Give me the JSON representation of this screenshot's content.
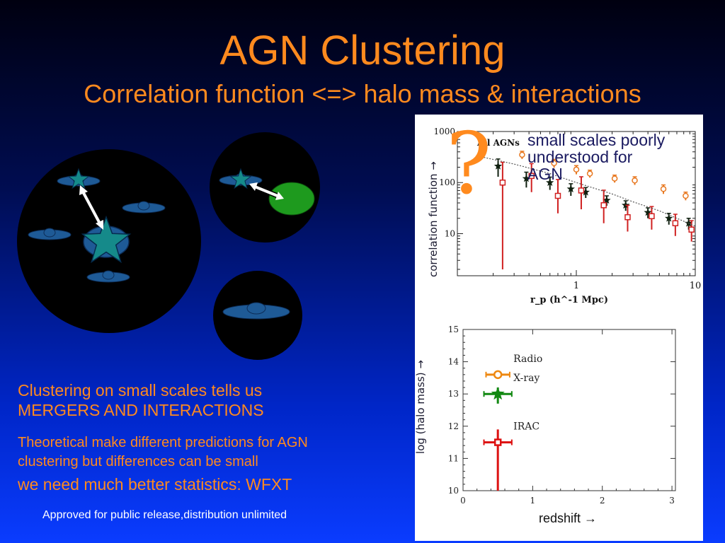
{
  "slide": {
    "title": "AGN Clustering",
    "subtitle": "Correlation function <=> halo mass & interactions",
    "text1_line1": "Clustering on small scales tells us",
    "text1_line2": "MERGERS AND INTERACTIONS",
    "text2_line1": "Theoretical make different predictions for AGN",
    "text2_line2": "clustering but differences can be small",
    "text3": "we need much better statistics: WFXT",
    "footer": "Approved for public release,distribution unlimited"
  },
  "colors": {
    "accent": "#ff8a1e",
    "background_top": "#000010",
    "background_bottom": "#0a3cff"
  },
  "chart_data": [
    {
      "type": "scatter",
      "title": "All AGNs",
      "xlabel": "r_p (h^-1 Mpc)",
      "ylabel": "correlation function →",
      "x_scale": "log",
      "y_scale": "log",
      "xlim": [
        0.1,
        10
      ],
      "ylim": [
        1.5,
        1000
      ],
      "x_tick_labels": [
        "1",
        "10"
      ],
      "y_tick_labels": [
        "10",
        "100",
        "1000"
      ],
      "annotation": "?",
      "note": [
        "small scales poorly",
        "understood for",
        "AGN"
      ],
      "series": [
        {
          "name": "orange circles",
          "color": "#e87820",
          "marker": "circle",
          "x": [
            0.16,
            0.35,
            0.65,
            1.0,
            1.3,
            2.1,
            3.1,
            5.4,
            8.3
          ],
          "y": [
            400,
            350,
            240,
            180,
            150,
            120,
            110,
            75,
            55
          ],
          "err_low": [
            80,
            60,
            45,
            35,
            25,
            20,
            20,
            15,
            10
          ],
          "err_high": [
            80,
            60,
            45,
            35,
            25,
            20,
            20,
            15,
            10
          ]
        },
        {
          "name": "black stars",
          "color": "#102010",
          "marker": "star",
          "x": [
            0.22,
            0.38,
            0.6,
            0.9,
            1.2,
            1.8,
            2.6,
            4.0,
            6.0,
            8.8
          ],
          "y": [
            210,
            120,
            100,
            75,
            65,
            45,
            36,
            26,
            20,
            16
          ],
          "err_low": [
            80,
            40,
            28,
            20,
            15,
            10,
            8,
            6,
            5,
            4
          ],
          "err_high": [
            80,
            40,
            28,
            20,
            15,
            10,
            8,
            6,
            5,
            4
          ]
        },
        {
          "name": "red squares",
          "color": "#d02020",
          "marker": "square",
          "x": [
            0.24,
            0.42,
            0.7,
            1.1,
            1.7,
            2.7,
            4.3,
            6.8,
            9.3
          ],
          "y": [
            100,
            135,
            55,
            70,
            36,
            21,
            22,
            16,
            12
          ],
          "err_low": [
            98,
            70,
            30,
            40,
            20,
            10,
            10,
            7,
            5
          ],
          "err_high": [
            150,
            100,
            60,
            60,
            35,
            15,
            12,
            8,
            6
          ]
        },
        {
          "name": "model",
          "color": "#555555",
          "marker": "dotted-line",
          "x": [
            0.15,
            0.3,
            0.6,
            1.0,
            2.0,
            3.0,
            5.0,
            10
          ],
          "y": [
            330,
            230,
            150,
            100,
            60,
            42,
            28,
            14
          ]
        }
      ]
    },
    {
      "type": "scatter",
      "xlabel": "redshift →",
      "ylabel": "log (halo mass) →",
      "xlim": [
        0,
        3.05
      ],
      "ylim": [
        10,
        15
      ],
      "x_tick_labels": [
        "0",
        "1",
        "2",
        "3"
      ],
      "y_tick_labels": [
        "10",
        "11",
        "12",
        "13",
        "14",
        "15"
      ],
      "series": [
        {
          "name": "Radio",
          "color": "#ee8811",
          "marker": "open-circle",
          "x": [
            0.5
          ],
          "y": [
            13.6
          ],
          "x_err": [
            0.17
          ],
          "y_err_low": [
            0.1
          ],
          "y_err_high": [
            0.1
          ]
        },
        {
          "name": "X-ray",
          "color": "#118811",
          "marker": "star",
          "x": [
            0.5
          ],
          "y": [
            13.0
          ],
          "x_err": [
            0.2
          ],
          "y_err_low": [
            0.3
          ],
          "y_err_high": [
            0.2
          ]
        },
        {
          "name": "IRAC",
          "color": "#dd1111",
          "marker": "open-square",
          "x": [
            0.5
          ],
          "y": [
            11.5
          ],
          "x_err": [
            0.2
          ],
          "y_err_low": [
            1.5
          ],
          "y_err_high": [
            0.4
          ]
        }
      ]
    }
  ]
}
